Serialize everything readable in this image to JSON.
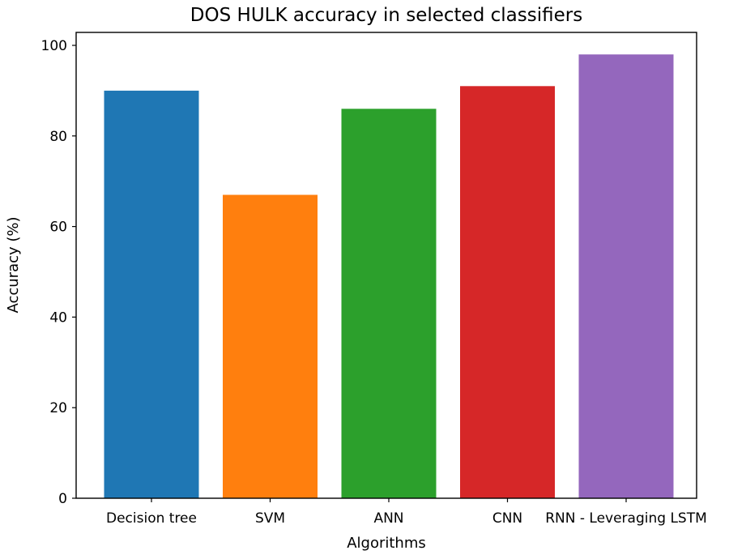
{
  "chart_data": {
    "type": "bar",
    "title": "DOS HULK accuracy in selected classifiers",
    "xlabel": "Algorithms",
    "ylabel": "Accuracy (%)",
    "categories": [
      "Decision tree",
      "SVM",
      "ANN",
      "CNN",
      "RNN - Leveraging LSTM"
    ],
    "values": [
      90,
      67,
      86,
      91,
      98
    ],
    "colors": [
      "#1f77b4",
      "#ff7f0e",
      "#2ca02c",
      "#d62728",
      "#9467bd"
    ],
    "ylim": [
      0,
      100
    ],
    "yticks": [
      0,
      20,
      40,
      60,
      80,
      100
    ],
    "grid": false,
    "legend": "none"
  }
}
